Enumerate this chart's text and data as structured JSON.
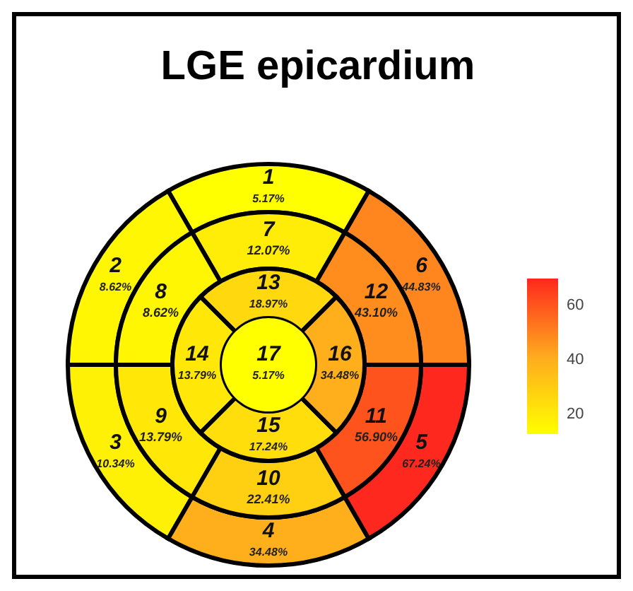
{
  "chart_data": {
    "type": "other",
    "title": "LGE epicardium",
    "categories": [
      "1",
      "2",
      "3",
      "4",
      "5",
      "6",
      "7",
      "8",
      "9",
      "10",
      "11",
      "12",
      "13",
      "14",
      "15",
      "16",
      "17"
    ],
    "values": [
      5.17,
      8.62,
      10.34,
      34.48,
      67.24,
      44.83,
      12.07,
      8.62,
      13.79,
      22.41,
      56.9,
      43.1,
      18.97,
      13.79,
      17.24,
      34.48,
      5.17
    ],
    "value_labels": [
      "5.17%",
      "8.62%",
      "10.34%",
      "34.48%",
      "67.24%",
      "44.83%",
      "12.07%",
      "8.62%",
      "13.79%",
      "22.41%",
      "56.90%",
      "43.10%",
      "18.97%",
      "13.79%",
      "17.24%",
      "34.48%",
      "5.17%"
    ],
    "annotations": [
      "60",
      "40",
      "20"
    ]
  }
}
